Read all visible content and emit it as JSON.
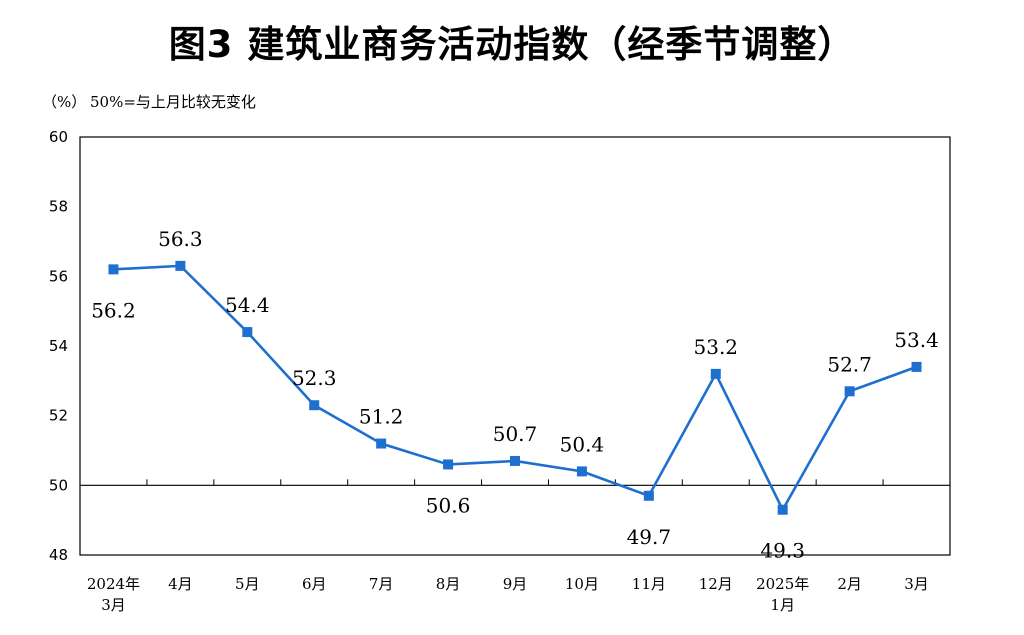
{
  "title": "图3  建筑业商务活动指数（经季节调整）",
  "unit_label": "（%）",
  "note": "50%=与上月比较无变化",
  "colors": {
    "series": "#1e6fcf",
    "axis": "#000000"
  },
  "chart_data": {
    "type": "line",
    "categories": [
      [
        "2024年",
        "3月"
      ],
      [
        "4月"
      ],
      [
        "5月"
      ],
      [
        "6月"
      ],
      [
        "7月"
      ],
      [
        "8月"
      ],
      [
        "9月"
      ],
      [
        "10月"
      ],
      [
        "11月"
      ],
      [
        "12月"
      ],
      [
        "2025年",
        "1月"
      ],
      [
        "2月"
      ],
      [
        "3月"
      ]
    ],
    "values": [
      56.2,
      56.3,
      54.4,
      52.3,
      51.2,
      50.6,
      50.7,
      50.4,
      49.7,
      53.2,
      49.3,
      52.7,
      53.4
    ],
    "data_labels": [
      "56.2",
      "56.3",
      "54.4",
      "52.3",
      "51.2",
      "50.6",
      "50.7",
      "50.4",
      "49.7",
      "53.2",
      "49.3",
      "52.7",
      "53.4"
    ],
    "ylim": [
      48,
      60
    ],
    "yticks": [
      "48",
      "50",
      "52",
      "54",
      "56",
      "58",
      "60"
    ],
    "reference_line": 50,
    "grid": false,
    "marker": "square"
  }
}
